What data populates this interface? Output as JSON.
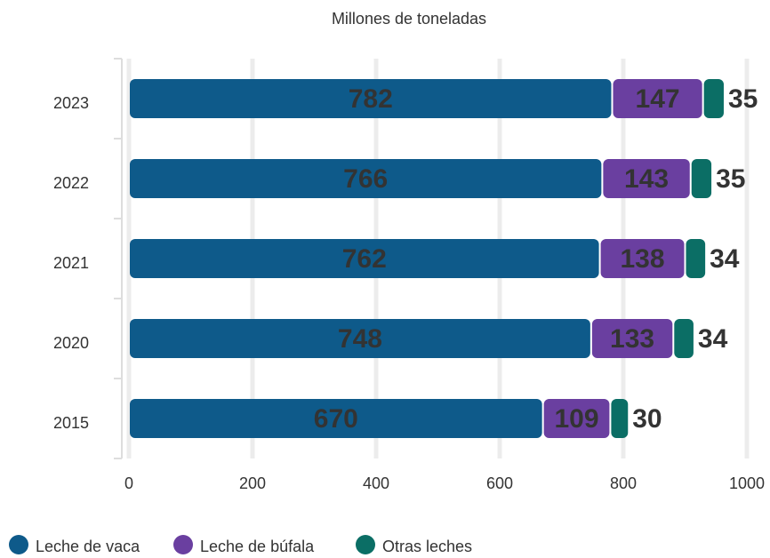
{
  "chart_data": {
    "type": "stacked_barh",
    "title": "Millones de toneladas",
    "categories": [
      "2023",
      "2022",
      "2021",
      "2020",
      "2015"
    ],
    "series": [
      {
        "name": "Leche de vaca",
        "color": "#0e5a8a",
        "values": [
          782,
          766,
          762,
          748,
          670
        ]
      },
      {
        "name": "Leche de búfala",
        "color": "#6a3fa0",
        "values": [
          147,
          143,
          138,
          133,
          109
        ]
      },
      {
        "name": "Otras leches",
        "color": "#0b6e65",
        "values": [
          35,
          35,
          34,
          34,
          30
        ]
      }
    ],
    "xlim": [
      0,
      1000
    ],
    "xticks": [
      0,
      200,
      400,
      600,
      800,
      1000
    ],
    "grid": true,
    "legend": "bottom"
  }
}
